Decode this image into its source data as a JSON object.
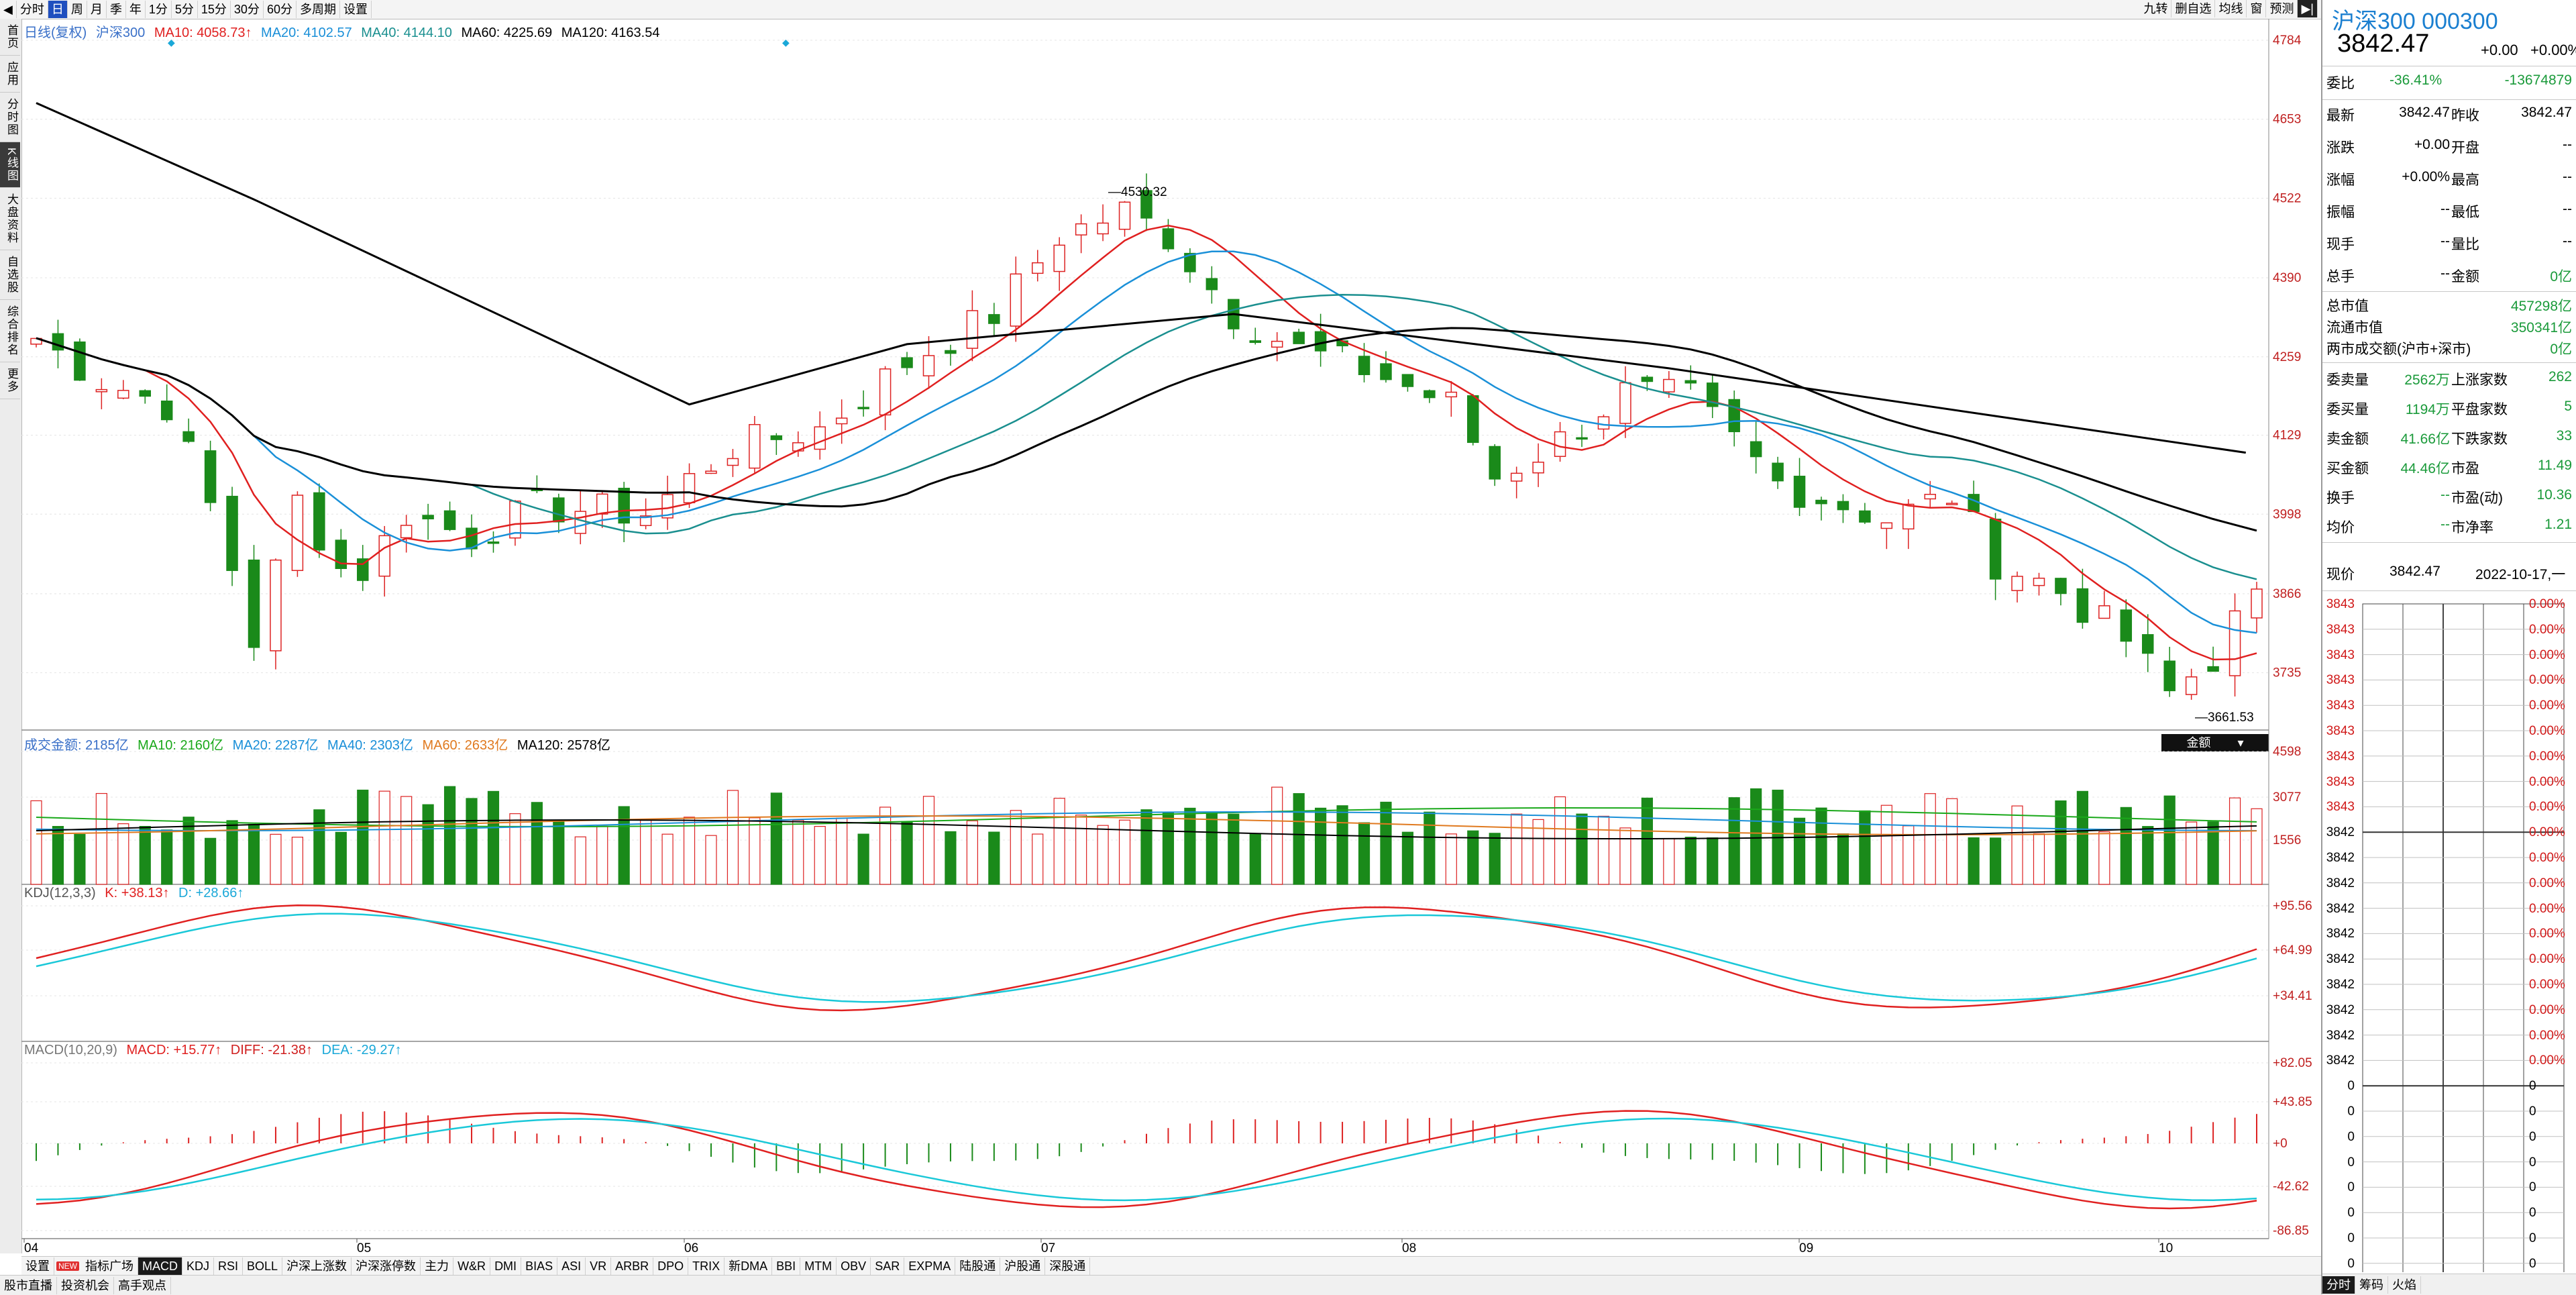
{
  "toolbar": {
    "items": [
      "分时",
      "日",
      "周",
      "月",
      "季",
      "年",
      "1分",
      "5分",
      "15分",
      "30分",
      "60分",
      "多周期",
      "设置"
    ],
    "active_index": 1,
    "right_items": [
      "九转",
      "删自选",
      "均线",
      "窗",
      "预测"
    ]
  },
  "sidebar": {
    "items": [
      "首页",
      "应用",
      "分时图",
      "K线图",
      "大盘资料",
      "自选股",
      "综合排名",
      "更多"
    ],
    "active_index": 3
  },
  "main_legend": {
    "name": "日线(复权)",
    "index": "沪深300",
    "ma10": "MA10: 4058.73↑",
    "ma20": "MA20: 4102.57",
    "ma40": "MA40: 4144.10",
    "ma60": "MA60: 4225.69",
    "ma120": "MA120: 4163.54"
  },
  "price_axis": [
    "4784",
    "4653",
    "4522",
    "4390",
    "4259",
    "4129",
    "3998",
    "3866",
    "3735"
  ],
  "annotations": {
    "high": "4530.32",
    "low": "3661.53"
  },
  "volume_legend": {
    "label": "成交金额: 2185亿",
    "ma10": "MA10: 2160亿",
    "ma20": "MA20: 2287亿",
    "ma40": "MA40: 2303亿",
    "ma60": "MA60: 2633亿",
    "ma120": "MA120: 2578亿",
    "selector": "金额"
  },
  "volume_axis": [
    "4598",
    "3077",
    "1556"
  ],
  "kdj_legend": {
    "label": "KDJ(12,3,3)",
    "k": "K: +38.13↑",
    "d": "D: +28.66↑"
  },
  "kdj_axis": [
    "+95.56",
    "+64.99",
    "+34.41"
  ],
  "macd_legend": {
    "label": "MACD(10,20,9)",
    "macd": "MACD: +15.77↑",
    "diff": "DIFF: -21.38↑",
    "dea": "DEA: -29.27↑"
  },
  "macd_axis": [
    "+82.05",
    "+43.85",
    "+0",
    "-42.62",
    "-86.85"
  ],
  "date_axis": [
    "04",
    "05",
    "06",
    "07",
    "08",
    "09",
    "10"
  ],
  "indicator_tabs": [
    "设置",
    "NEW",
    "指标广场",
    "MACD",
    "KDJ",
    "RSI",
    "BOLL",
    "沪深上涨数",
    "沪深涨停数",
    "主力",
    "W&R",
    "DMI",
    "BIAS",
    "ASI",
    "VR",
    "ARBR",
    "DPO",
    "TRIX",
    "新DMA",
    "BBI",
    "MTM",
    "OBV",
    "SAR",
    "EXPMA",
    "陆股通",
    "沪股通",
    "深股通"
  ],
  "indicator_active": "MACD",
  "bottom_tabs": [
    "股市直播",
    "投资机会",
    "高手观点"
  ],
  "quote": {
    "title": "沪深300 000300",
    "price": "3842.47",
    "change": "+0.00",
    "change_pct": "+0.00%",
    "weibi_label": "委比",
    "weibi": "-36.41%",
    "weicha": "-13674879",
    "rows": [
      {
        "l": "最新",
        "m": "3842.47",
        "l2": "昨收",
        "r": "3842.47"
      },
      {
        "l": "涨跌",
        "m": "+0.00",
        "l2": "开盘",
        "r": "--"
      },
      {
        "l": "涨幅",
        "m": "+0.00%",
        "l2": "最高",
        "r": "--"
      },
      {
        "l": "振幅",
        "m": "--",
        "l2": "最低",
        "r": "--"
      },
      {
        "l": "现手",
        "m": "--",
        "l2": "量比",
        "r": "--"
      },
      {
        "l": "总手",
        "m": "--",
        "l2": "金额",
        "r": "0亿"
      }
    ],
    "mktcap": [
      {
        "l": "总市值",
        "r": "457298亿"
      },
      {
        "l": "流通市值",
        "r": "350341亿"
      },
      {
        "l": "两市成交额(沪市+深市)",
        "r": "0亿"
      }
    ],
    "rows2": [
      {
        "l": "委卖量",
        "m": "2562万",
        "l2": "上涨家数",
        "r": "262"
      },
      {
        "l": "委买量",
        "m": "1194万",
        "l2": "平盘家数",
        "r": "5"
      },
      {
        "l": "卖金额",
        "m": "41.66亿",
        "l2": "下跌家数",
        "r": "33"
      },
      {
        "l": "买金额",
        "m": "44.46亿",
        "l2": "市盈",
        "r": "11.49"
      },
      {
        "l": "换手",
        "m": "--",
        "l2": "市盈(动)",
        "r": "10.36"
      },
      {
        "l": "均价",
        "m": "--",
        "l2": "市净率",
        "r": "1.21"
      }
    ],
    "current_label": "现价",
    "current_price": "3842.47",
    "current_date": "2022-10-17,一",
    "tick_prices": [
      "3843",
      "3843",
      "3843",
      "3843",
      "3843",
      "3843",
      "3843",
      "3843",
      "3843",
      "3842",
      "3842",
      "3842",
      "3842",
      "3842",
      "3842",
      "3842",
      "3842",
      "3842",
      "3842",
      "0",
      "0",
      "0",
      "0",
      "0",
      "0",
      "0",
      "0"
    ],
    "tick_pcts": [
      "0.00%",
      "0.00%",
      "0.00%",
      "0.00%",
      "0.00%",
      "0.00%",
      "0.00%",
      "0.00%",
      "0.00%",
      "0.00%",
      "0.00%",
      "0.00%",
      "0.00%",
      "0.00%",
      "0.00%",
      "0.00%",
      "0.00%",
      "0.00%",
      "0.00%",
      "0",
      "0",
      "0",
      "0",
      "0",
      "0",
      "0",
      "0"
    ],
    "bottom_tabs": [
      "分时",
      "筹码",
      "火焰"
    ]
  }
}
